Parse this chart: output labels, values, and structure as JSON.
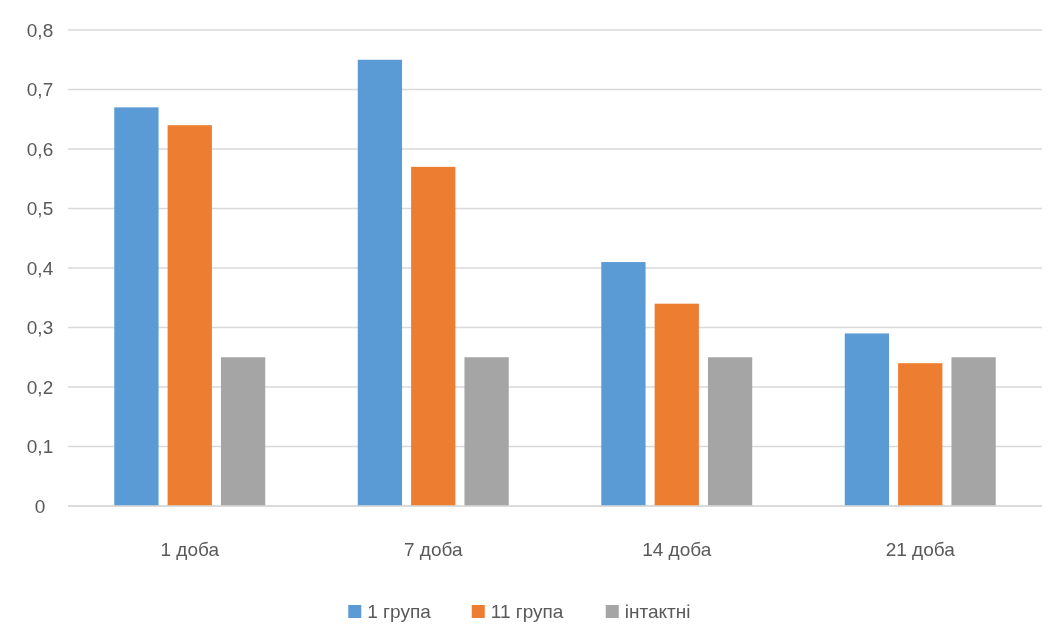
{
  "chart_data": {
    "type": "bar",
    "categories": [
      "1 доба",
      "7 доба",
      "14 доба",
      "21 доба"
    ],
    "series": [
      {
        "name": "1 група",
        "color": "#5b9bd5",
        "values": [
          0.67,
          0.75,
          0.41,
          0.29
        ]
      },
      {
        "name": "11 група",
        "color": "#ed7d31",
        "values": [
          0.64,
          0.57,
          0.34,
          0.24
        ]
      },
      {
        "name": "інтактні",
        "color": "#a5a5a5",
        "values": [
          0.25,
          0.25,
          0.25,
          0.25
        ]
      }
    ],
    "ylim": [
      0,
      0.8
    ],
    "yticks": [
      0,
      {
        "value": 0.1,
        "label": "0,1"
      },
      {
        "value": 0.2,
        "label": "0,2"
      },
      {
        "value": 0.3,
        "label": "0,3"
      },
      {
        "value": 0.4,
        "label": "0,4"
      },
      {
        "value": 0.5,
        "label": "0,5"
      },
      {
        "value": 0.6,
        "label": "0,6"
      },
      {
        "value": 0.7,
        "label": "0,7"
      },
      {
        "value": 0.8,
        "label": "0,8"
      }
    ],
    "grid": "y",
    "legend": "bottom"
  }
}
